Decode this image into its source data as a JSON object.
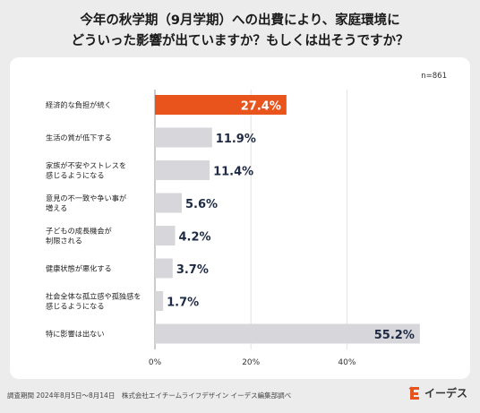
{
  "title_line1": "今年の秋学期（9月学期）への出費により、家庭環境に",
  "title_line2": "どういった影響が出ていますか？もしくは出そうですか？",
  "sample_size": "n=861",
  "footer": "調査期間 2024年8月5日〜8月14日　株式会社エイチームライフデザイン イーデス編集部調べ",
  "logo_text": "イーデス",
  "colors": {
    "highlight": "#e8541c",
    "bar": "#d7d7db",
    "background": "#ececec",
    "panel": "#ffffff",
    "label_dark": "#1f2a44"
  },
  "chart_data": {
    "type": "bar",
    "orientation": "horizontal",
    "categories": [
      [
        "経済的な負担が続く"
      ],
      [
        "生活の質が低下する"
      ],
      [
        "家族が不安やストレスを",
        "感じるようになる"
      ],
      [
        "意見の不一致や争い事が",
        "増える"
      ],
      [
        "子どもの成長機会が",
        "制限される"
      ],
      [
        "健康状態が悪化する"
      ],
      [
        "社会全体な孤立感や孤独感を",
        "感じるようになる"
      ],
      [
        "特に影響は出ない"
      ]
    ],
    "values": [
      27.4,
      11.9,
      11.4,
      5.6,
      4.2,
      3.7,
      1.7,
      55.2
    ],
    "value_labels": [
      "27.4%",
      "11.9%",
      "11.4%",
      "5.6%",
      "4.2%",
      "3.7%",
      "1.7%",
      "55.2%"
    ],
    "highlight_index": 0,
    "xticks": [
      "0%",
      "20%",
      "40%"
    ],
    "xlim": [
      0,
      60
    ],
    "unit": "%"
  }
}
